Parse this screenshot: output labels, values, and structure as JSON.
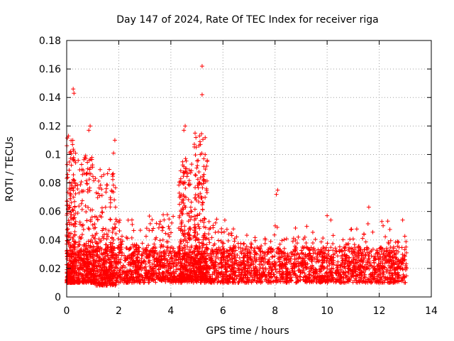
{
  "chart_data": {
    "type": "scatter",
    "title": "Day 147 of 2024, Rate Of TEC Index for receiver riga",
    "xlabel": "GPS time / hours",
    "ylabel": "ROTI / TECUs",
    "xlim": [
      0,
      14
    ],
    "ylim": [
      0,
      0.18
    ],
    "x_ticks": [
      "0",
      "2",
      "4",
      "6",
      "8",
      "10",
      "12",
      "14"
    ],
    "y_ticks": [
      "0",
      "0.02",
      "0.04",
      "0.06",
      "0.08",
      "0.1",
      "0.12",
      "0.14",
      "0.16",
      "0.18"
    ],
    "grid": true,
    "marker": "+",
    "color": "#ff0000",
    "x_data_extent": [
      0,
      13.05
    ],
    "baseline_range": [
      0.01,
      0.035
    ],
    "notable_points": [
      {
        "x": 0.25,
        "y": 0.146
      },
      {
        "x": 0.28,
        "y": 0.143
      },
      {
        "x": 0.9,
        "y": 0.12
      },
      {
        "x": 0.85,
        "y": 0.117
      },
      {
        "x": 1.85,
        "y": 0.11
      },
      {
        "x": 1.8,
        "y": 0.101
      },
      {
        "x": 4.55,
        "y": 0.12
      },
      {
        "x": 4.5,
        "y": 0.117
      },
      {
        "x": 5.2,
        "y": 0.162
      },
      {
        "x": 5.2,
        "y": 0.142
      },
      {
        "x": 5.1,
        "y": 0.113
      },
      {
        "x": 8.1,
        "y": 0.075
      },
      {
        "x": 8.05,
        "y": 0.072
      },
      {
        "x": 11.6,
        "y": 0.063
      },
      {
        "x": 12.1,
        "y": 0.053
      },
      {
        "x": 12.15,
        "y": 0.05
      },
      {
        "x": 12.9,
        "y": 0.054
      },
      {
        "x": 10.0,
        "y": 0.057
      }
    ],
    "clusters": [
      {
        "x_from": 0.0,
        "x_to": 0.35,
        "y_min": 0.01,
        "y_max": 0.113
      },
      {
        "x_from": 0.4,
        "x_to": 1.1,
        "y_min": 0.01,
        "y_max": 0.1
      },
      {
        "x_from": 1.1,
        "x_to": 1.9,
        "y_min": 0.008,
        "y_max": 0.09
      },
      {
        "x_from": 1.9,
        "x_to": 3.0,
        "y_min": 0.01,
        "y_max": 0.055
      },
      {
        "x_from": 3.0,
        "x_to": 4.2,
        "y_min": 0.012,
        "y_max": 0.058
      },
      {
        "x_from": 4.3,
        "x_to": 4.8,
        "y_min": 0.012,
        "y_max": 0.1
      },
      {
        "x_from": 4.9,
        "x_to": 5.4,
        "y_min": 0.012,
        "y_max": 0.115
      },
      {
        "x_from": 5.4,
        "x_to": 6.5,
        "y_min": 0.01,
        "y_max": 0.055
      },
      {
        "x_from": 6.5,
        "x_to": 9.5,
        "y_min": 0.01,
        "y_max": 0.05
      },
      {
        "x_from": 9.5,
        "x_to": 13.05,
        "y_min": 0.01,
        "y_max": 0.055
      }
    ]
  }
}
